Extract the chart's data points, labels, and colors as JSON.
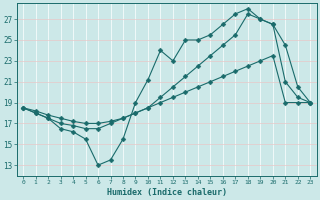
{
  "xlabel": "Humidex (Indice chaleur)",
  "background_color": "#cce8e8",
  "grid_color": "#d4b8b8",
  "line_color": "#1a6b6b",
  "xlim": [
    -0.5,
    23.5
  ],
  "ylim": [
    12.0,
    28.5
  ],
  "xticks": [
    0,
    1,
    2,
    3,
    4,
    5,
    6,
    7,
    8,
    9,
    10,
    11,
    12,
    13,
    14,
    15,
    16,
    17,
    18,
    19,
    20,
    21,
    22,
    23
  ],
  "yticks": [
    13,
    15,
    17,
    19,
    21,
    23,
    25,
    27
  ],
  "line1_x": [
    0,
    1,
    2,
    3,
    4,
    5,
    6,
    7,
    8,
    9,
    10,
    11,
    12,
    13,
    14,
    15,
    16,
    17,
    18,
    19,
    20,
    21,
    22,
    23
  ],
  "line1_y": [
    18.5,
    18.0,
    17.5,
    16.5,
    16.2,
    15.5,
    13.0,
    13.5,
    15.5,
    19.0,
    21.2,
    24.0,
    23.0,
    25.0,
    25.0,
    25.5,
    26.5,
    27.5,
    28.0,
    27.0,
    26.5,
    24.5,
    20.5,
    19.0
  ],
  "line2_x": [
    0,
    1,
    2,
    3,
    4,
    5,
    6,
    7,
    8,
    9,
    10,
    11,
    12,
    13,
    14,
    15,
    16,
    17,
    18,
    19,
    20,
    21,
    22,
    23
  ],
  "line2_y": [
    18.5,
    18.2,
    17.8,
    17.5,
    17.2,
    17.0,
    17.0,
    17.2,
    17.5,
    18.0,
    18.5,
    19.5,
    20.5,
    21.5,
    22.5,
    23.5,
    24.5,
    25.5,
    27.5,
    27.0,
    26.5,
    21.0,
    19.5,
    19.0
  ],
  "line3_x": [
    0,
    1,
    2,
    3,
    4,
    5,
    6,
    7,
    8,
    9,
    10,
    11,
    12,
    13,
    14,
    15,
    16,
    17,
    18,
    19,
    20,
    21,
    22,
    23
  ],
  "line3_y": [
    18.5,
    18.0,
    17.5,
    17.0,
    16.8,
    16.5,
    16.5,
    17.0,
    17.5,
    18.0,
    18.5,
    19.0,
    19.5,
    20.0,
    20.5,
    21.0,
    21.5,
    22.0,
    22.5,
    23.0,
    23.5,
    19.0,
    19.0,
    19.0
  ]
}
